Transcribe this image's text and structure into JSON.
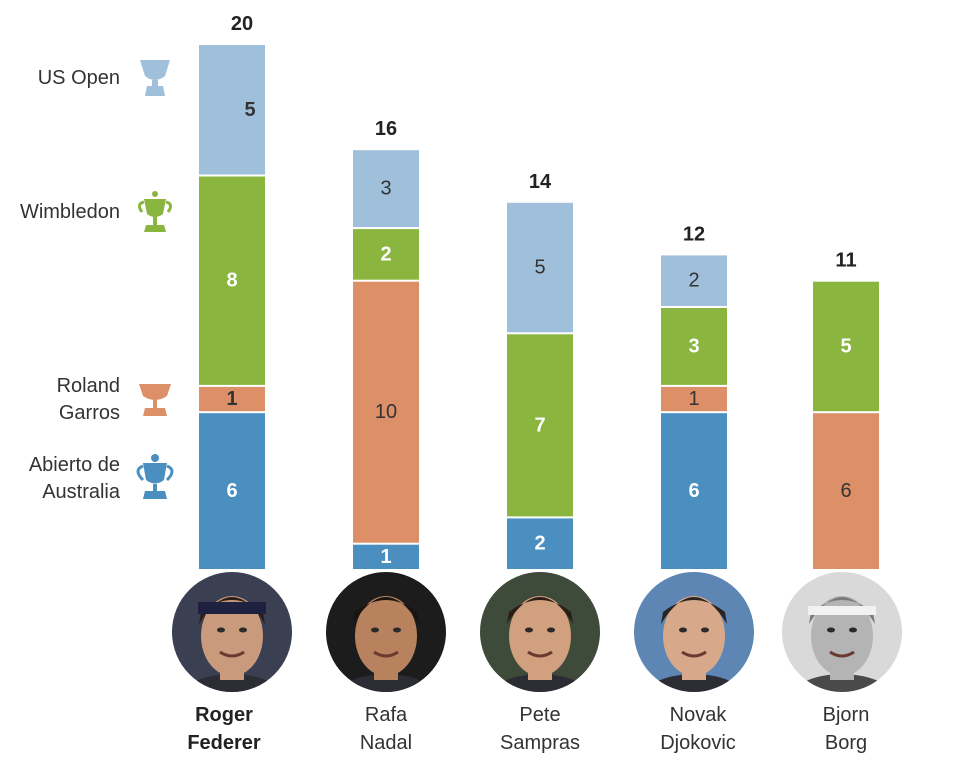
{
  "chart_data": {
    "type": "bar",
    "stacked": true,
    "categories": [
      "Roger Federer",
      "Rafa Nadal",
      "Pete Sampras",
      "Novak Djokovic",
      "Bjorn Borg"
    ],
    "category_lines": [
      [
        "Roger",
        "Federer"
      ],
      [
        "Rafa",
        "Nadal"
      ],
      [
        "Pete",
        "Sampras"
      ],
      [
        "Novak",
        "Djokovic"
      ],
      [
        "Bjorn",
        "Borg"
      ]
    ],
    "highlighted_category": "Roger Federer",
    "series": [
      {
        "name": "Abierto de Australia",
        "label_lines": [
          "Abierto de",
          "Australia"
        ],
        "color": "#4a8fc0",
        "label_color": "#ffffff",
        "values": [
          6,
          1,
          2,
          6,
          0
        ]
      },
      {
        "name": "Roland Garros",
        "label_lines": [
          "Roland",
          "Garros"
        ],
        "color": "#dd9068",
        "label_color": "#333333",
        "values": [
          1,
          10,
          0,
          1,
          6
        ]
      },
      {
        "name": "Wimbledon",
        "label_lines": [
          "Wimbledon"
        ],
        "color": "#8ab53f",
        "label_color": "#ffffff",
        "values": [
          8,
          2,
          7,
          3,
          5
        ]
      },
      {
        "name": "US Open",
        "label_lines": [
          "US Open"
        ],
        "color": "#9fbfda",
        "label_color": "#333333",
        "values": [
          5,
          3,
          5,
          2,
          0
        ]
      }
    ],
    "totals": [
      "20",
      "16",
      "14",
      "12",
      "11"
    ],
    "legend_placement": "left",
    "grid": false
  },
  "icons": [
    "trophy-us-open-icon",
    "trophy-wimbledon-icon",
    "trophy-roland-garros-icon",
    "trophy-australia-icon"
  ]
}
